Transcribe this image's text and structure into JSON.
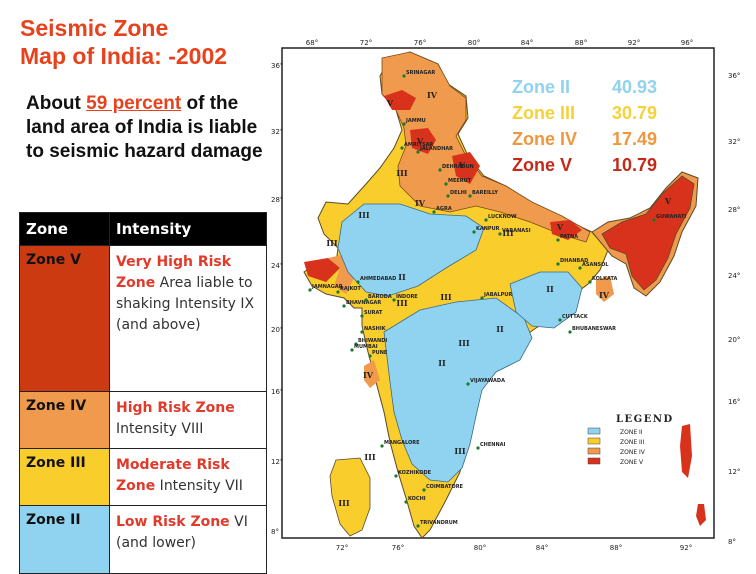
{
  "title_line1": "Seismic Zone",
  "title_line2": "Map of India: -2002",
  "intro": {
    "before": "About ",
    "highlight": "59 percent",
    "after": " of the land area of India is liable to seismic hazard damage"
  },
  "table": {
    "headers": [
      "Zone",
      "Intensity"
    ],
    "rows": [
      {
        "zone": "Zone V",
        "risk": "Very High Risk Zone",
        "detail": " Area liable to shaking Intensity IX (and above)",
        "color": "#cc3a12"
      },
      {
        "zone": "Zone IV",
        "risk": "High Risk  Zone",
        "detail": " Intensity VIII",
        "color": "#ef9a4c"
      },
      {
        "zone": "Zone III",
        "risk": "Moderate Risk Zone",
        "detail": " Intensity VII",
        "color": "#f9cd2c"
      },
      {
        "zone": "Zone II",
        "risk": "Low Risk Zone",
        "detail": " VI (and lower)",
        "color": "#8fd3f0"
      }
    ]
  },
  "map": {
    "top_lon": [
      "68°",
      "72°",
      "76°",
      "80°",
      "84°",
      "88°",
      "92°",
      "96°"
    ],
    "bottom_lon": [
      "72°",
      "76°",
      "80°",
      "84°",
      "88°",
      "92°"
    ],
    "left_lat": [
      "36°",
      "32°",
      "28°",
      "24°",
      "20°",
      "16°",
      "12°",
      "8°"
    ],
    "right_lat": [
      "36°",
      "32°",
      "28°",
      "24°",
      "20°",
      "16°",
      "12°",
      "8°"
    ],
    "zone_labels": [
      "IV",
      "V",
      "V",
      "V",
      "V",
      "V",
      "III",
      "III",
      "III",
      "III",
      "III",
      "III",
      "III",
      "III",
      "III",
      "III",
      "II",
      "II",
      "II",
      "II",
      "IV",
      "IV",
      "IV"
    ],
    "cities": [
      "SRINAGAR",
      "JAMMU",
      "AMRITSAR",
      "JALANDHAR",
      "DEHRADUN",
      "MEERUT",
      "DELHI",
      "BAREILLY",
      "AGRA",
      "LUCKNOW",
      "KANPUR",
      "VARANASI",
      "PATNA",
      "GUWAHATI",
      "DHANBAD",
      "ASANSOL",
      "KOLKATA",
      "JAMNAGAR",
      "RAJKOT",
      "AHMEDABAD",
      "BHAVNAGAR",
      "BARODA",
      "INDORE",
      "JABALPUR",
      "SURAT",
      "NASHIK",
      "BHIWANDI",
      "MUMBAI",
      "PUNE",
      "CUTTACK",
      "BHUBANESWAR",
      "VIJAYAWADA",
      "MANGALORE",
      "CHENNAI",
      "KOZHIKODE",
      "COIMBATORE",
      "KOCHI",
      "TRIVANDRUM"
    ]
  },
  "stats": [
    {
      "label": "Zone II",
      "value": "40.93",
      "color": "#8fd3f0"
    },
    {
      "label": "Zone III",
      "value": "30.79",
      "color": "#f5d23a"
    },
    {
      "label": "Zone IV",
      "value": "17.49",
      "color": "#f0973e"
    },
    {
      "label": "Zone V",
      "value": "10.79",
      "color": "#c42a18"
    }
  ],
  "legend": {
    "title": "LEGEND",
    "items": [
      {
        "label": "ZONE II",
        "color": "#8fd3f0"
      },
      {
        "label": "ZONE III",
        "color": "#f9cd2c"
      },
      {
        "label": "ZONE IV",
        "color": "#ef9a4c"
      },
      {
        "label": "ZONE V",
        "color": "#d8321c"
      }
    ]
  }
}
